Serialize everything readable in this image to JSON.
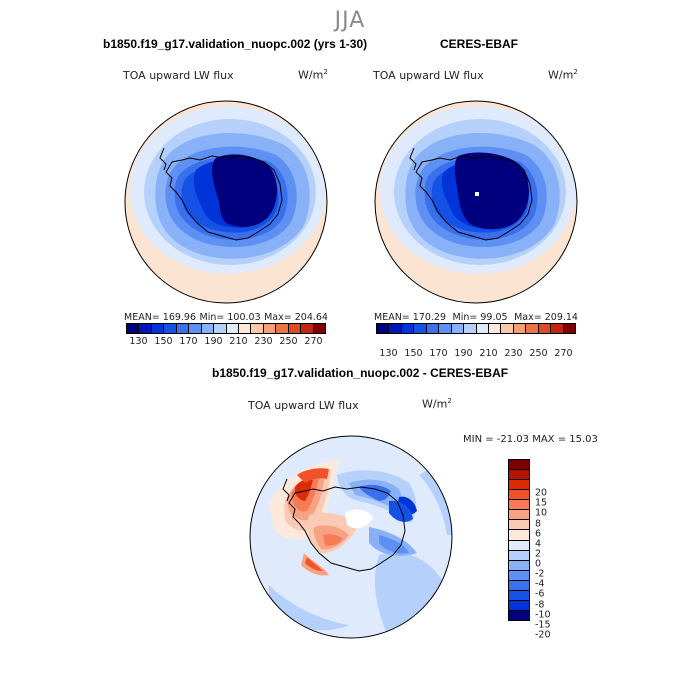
{
  "season": "JJA",
  "panels": [
    {
      "title": "b1850.f19_g17.validation_nuopc.002 (yrs 1-30)",
      "variable": "TOA upward LW flux",
      "unit": "W/m",
      "unit_exp": "2",
      "mean_label": "MEAN= 169.96",
      "min_label": "Min= 100.03",
      "max_label": "Max= 204.64"
    },
    {
      "title": "CERES-EBAF",
      "variable": "TOA upward LW flux",
      "unit": "W/m",
      "unit_exp": "2",
      "mean_label": "MEAN= 170.29",
      "min_label": "Min= 99.05",
      "max_label": "Max= 209.14"
    }
  ],
  "diff_panel": {
    "title": "b1850.f19_g17.validation_nuopc.002 - CERES-EBAF",
    "variable": "TOA upward LW flux",
    "unit": "W/m",
    "unit_exp": "2",
    "minmax_label": "MIN = -21.03 MAX =  15.03"
  },
  "abs_colorbar": {
    "colors": [
      "#00007f",
      "#0016b8",
      "#0034d9",
      "#1452e6",
      "#3a70ee",
      "#5e90f4",
      "#88b1f8",
      "#b4d0fb",
      "#dfeafd",
      "#fce9da",
      "#f9c8a6",
      "#f4a074",
      "#ec7548",
      "#dd4a23",
      "#c2260e",
      "#7f0000"
    ],
    "tick_labels": [
      "130",
      "150",
      "170",
      "190",
      "210",
      "230",
      "250",
      "270"
    ]
  },
  "diff_colorbar": {
    "colors": [
      "#7f0000",
      "#b51200",
      "#dc2b05",
      "#f2522a",
      "#f67b56",
      "#f8a284",
      "#fbcab4",
      "#fde9dc",
      "#dfeafd",
      "#b4d0fb",
      "#88b1f8",
      "#5e90f4",
      "#3a70ee",
      "#1452e6",
      "#0034d9",
      "#00007f"
    ],
    "tick_labels": [
      "20",
      "15",
      "10",
      "8",
      "6",
      "4",
      "2",
      "0",
      "-2",
      "-4",
      "-6",
      "-8",
      "-10",
      "-15",
      "-20"
    ]
  }
}
